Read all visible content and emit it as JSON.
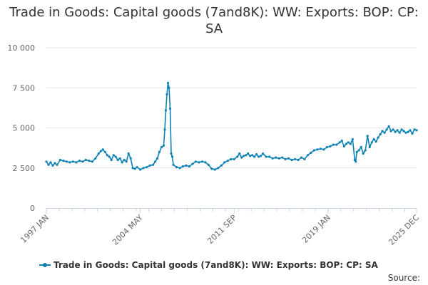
{
  "chart_data": {
    "type": "line",
    "title": "Trade in Goods: Capital goods (7and8K): WW: Exports: BOP: CP: SA",
    "xlabel": "",
    "ylabel": "",
    "x_start": "1997-01",
    "x_end": "2025-12",
    "x_ticks": [
      "1997 JAN",
      "2004 MAY",
      "2011 SEP",
      "2019 JAN",
      "2025 DEC"
    ],
    "x_tick_positions": [
      "1997-01",
      "2004-05",
      "2011-09",
      "2019-01",
      "2025-12"
    ],
    "ylim": [
      0,
      10000
    ],
    "y_ticks": [
      {
        "value": 0,
        "label": "0"
      },
      {
        "value": 2500,
        "label": "2 500"
      },
      {
        "value": 5000,
        "label": "5 000"
      },
      {
        "value": 7500,
        "label": "7 500"
      },
      {
        "value": 10000,
        "label": "10 000"
      }
    ],
    "grid": true,
    "legend_position": "bottom",
    "series": [
      {
        "name": "Trade in Goods: Capital goods (7and8K): WW: Exports: BOP: CP: SA",
        "color": "#0f82b4",
        "points": [
          [
            "1997-01",
            2900
          ],
          [
            "1997-03",
            2700
          ],
          [
            "1997-05",
            2850
          ],
          [
            "1997-07",
            2650
          ],
          [
            "1997-09",
            2800
          ],
          [
            "1997-11",
            2700
          ],
          [
            "1998-02",
            3000
          ],
          [
            "1998-05",
            2950
          ],
          [
            "1998-08",
            2900
          ],
          [
            "1998-11",
            2850
          ],
          [
            "1999-02",
            2900
          ],
          [
            "1999-05",
            2850
          ],
          [
            "1999-08",
            2950
          ],
          [
            "1999-11",
            2900
          ],
          [
            "2000-02",
            3000
          ],
          [
            "2000-05",
            2950
          ],
          [
            "2000-08",
            2900
          ],
          [
            "2000-11",
            3100
          ],
          [
            "2001-02",
            3400
          ],
          [
            "2001-04",
            3550
          ],
          [
            "2001-06",
            3650
          ],
          [
            "2001-08",
            3500
          ],
          [
            "2001-10",
            3300
          ],
          [
            "2001-12",
            3200
          ],
          [
            "2002-02",
            3000
          ],
          [
            "2002-04",
            3300
          ],
          [
            "2002-06",
            3200
          ],
          [
            "2002-08",
            3000
          ],
          [
            "2002-10",
            3100
          ],
          [
            "2002-12",
            2850
          ],
          [
            "2003-02",
            3000
          ],
          [
            "2003-04",
            2900
          ],
          [
            "2003-06",
            3400
          ],
          [
            "2003-08",
            3100
          ],
          [
            "2003-10",
            2500
          ],
          [
            "2003-12",
            2450
          ],
          [
            "2004-02",
            2550
          ],
          [
            "2004-05",
            2400
          ],
          [
            "2004-08",
            2500
          ],
          [
            "2004-11",
            2550
          ],
          [
            "2005-02",
            2650
          ],
          [
            "2005-05",
            2700
          ],
          [
            "2005-07",
            2900
          ],
          [
            "2005-09",
            3100
          ],
          [
            "2005-11",
            3500
          ],
          [
            "2006-01",
            3800
          ],
          [
            "2006-03",
            3900
          ],
          [
            "2006-04",
            4900
          ],
          [
            "2006-05",
            6100
          ],
          [
            "2006-06",
            7100
          ],
          [
            "2006-07",
            7800
          ],
          [
            "2006-08",
            7500
          ],
          [
            "2006-09",
            6200
          ],
          [
            "2006-10",
            3400
          ],
          [
            "2006-11",
            3200
          ],
          [
            "2006-12",
            2700
          ],
          [
            "2007-03",
            2550
          ],
          [
            "2007-06",
            2500
          ],
          [
            "2007-09",
            2600
          ],
          [
            "2007-12",
            2650
          ],
          [
            "2008-03",
            2600
          ],
          [
            "2008-06",
            2750
          ],
          [
            "2008-09",
            2900
          ],
          [
            "2008-12",
            2850
          ],
          [
            "2009-03",
            2900
          ],
          [
            "2009-06",
            2850
          ],
          [
            "2009-09",
            2700
          ],
          [
            "2009-12",
            2450
          ],
          [
            "2010-03",
            2400
          ],
          [
            "2010-06",
            2500
          ],
          [
            "2010-09",
            2650
          ],
          [
            "2010-12",
            2850
          ],
          [
            "2011-03",
            2950
          ],
          [
            "2011-06",
            3050
          ],
          [
            "2011-09",
            3050
          ],
          [
            "2011-12",
            3200
          ],
          [
            "2012-02",
            3400
          ],
          [
            "2012-04",
            3150
          ],
          [
            "2012-06",
            3250
          ],
          [
            "2012-08",
            3300
          ],
          [
            "2012-10",
            3400
          ],
          [
            "2012-12",
            3250
          ],
          [
            "2013-02",
            3300
          ],
          [
            "2013-04",
            3200
          ],
          [
            "2013-06",
            3350
          ],
          [
            "2013-08",
            3200
          ],
          [
            "2013-10",
            3250
          ],
          [
            "2013-12",
            3400
          ],
          [
            "2014-03",
            3200
          ],
          [
            "2014-06",
            3200
          ],
          [
            "2014-09",
            3100
          ],
          [
            "2014-12",
            3150
          ],
          [
            "2015-03",
            3100
          ],
          [
            "2015-06",
            3150
          ],
          [
            "2015-09",
            3050
          ],
          [
            "2015-12",
            3100
          ],
          [
            "2016-03",
            3000
          ],
          [
            "2016-06",
            3050
          ],
          [
            "2016-09",
            3000
          ],
          [
            "2016-12",
            3150
          ],
          [
            "2017-03",
            3050
          ],
          [
            "2017-06",
            3300
          ],
          [
            "2017-09",
            3450
          ],
          [
            "2017-12",
            3600
          ],
          [
            "2018-03",
            3650
          ],
          [
            "2018-06",
            3700
          ],
          [
            "2018-09",
            3650
          ],
          [
            "2018-12",
            3800
          ],
          [
            "2019-03",
            3850
          ],
          [
            "2019-06",
            3950
          ],
          [
            "2019-09",
            3950
          ],
          [
            "2019-12",
            4100
          ],
          [
            "2020-02",
            4200
          ],
          [
            "2020-04",
            3850
          ],
          [
            "2020-06",
            4000
          ],
          [
            "2020-08",
            4100
          ],
          [
            "2020-10",
            4000
          ],
          [
            "2020-12",
            4300
          ],
          [
            "2021-02",
            3000
          ],
          [
            "2021-03",
            2900
          ],
          [
            "2021-04",
            3500
          ],
          [
            "2021-06",
            3600
          ],
          [
            "2021-08",
            3800
          ],
          [
            "2021-10",
            3400
          ],
          [
            "2021-12",
            3600
          ],
          [
            "2022-02",
            4500
          ],
          [
            "2022-04",
            3800
          ],
          [
            "2022-06",
            4100
          ],
          [
            "2022-08",
            4300
          ],
          [
            "2022-10",
            4150
          ],
          [
            "2022-12",
            4400
          ],
          [
            "2023-02",
            4600
          ],
          [
            "2023-04",
            4800
          ],
          [
            "2023-06",
            4700
          ],
          [
            "2023-08",
            4900
          ],
          [
            "2023-10",
            5100
          ],
          [
            "2023-12",
            4800
          ],
          [
            "2024-02",
            4900
          ],
          [
            "2024-04",
            4750
          ],
          [
            "2024-06",
            4850
          ],
          [
            "2024-08",
            4700
          ],
          [
            "2024-10",
            4900
          ],
          [
            "2024-12",
            4800
          ],
          [
            "2025-02",
            4700
          ],
          [
            "2025-04",
            4750
          ],
          [
            "2025-06",
            4850
          ],
          [
            "2025-08",
            4650
          ],
          [
            "2025-10",
            4900
          ],
          [
            "2025-12",
            4850
          ]
        ]
      }
    ]
  },
  "source_label": "Source:"
}
